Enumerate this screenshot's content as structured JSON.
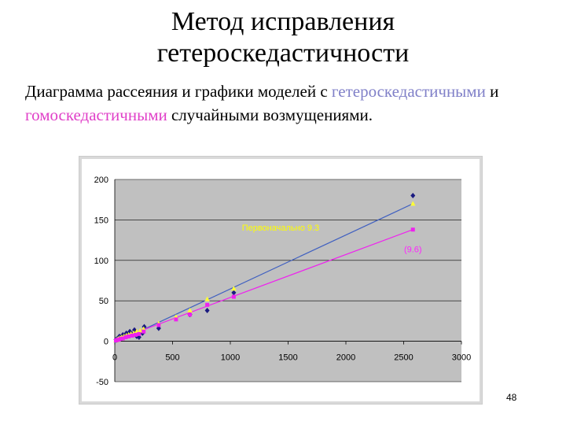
{
  "slide": {
    "title_line1": "Метод исправления",
    "title_line2": "гетероскедастичности",
    "subtitle_part1": "Диаграмма рассеяния и графики моделей с ",
    "subtitle_hetero": "гетероскедастичными",
    "subtitle_and": " и ",
    "subtitle_homo": "гомоскедастичными",
    "subtitle_part2": " случайными возмущениями.",
    "page_number": "48"
  },
  "chart_data": {
    "type": "scatter",
    "title": "",
    "xlabel": "",
    "ylabel": "",
    "xlim": [
      0,
      3000
    ],
    "ylim": [
      -50,
      200
    ],
    "x_ticks": [
      0,
      500,
      1000,
      1500,
      2000,
      2500,
      3000
    ],
    "y_ticks": [
      -50,
      0,
      50,
      100,
      150,
      200
    ],
    "grid": "horizontal",
    "background": "#c0c0c0",
    "series": [
      {
        "color": "#1a1a80",
        "marker": "diamond",
        "points": [
          [
            10,
            2
          ],
          [
            20,
            3
          ],
          [
            30,
            4
          ],
          [
            40,
            6
          ],
          [
            55,
            5
          ],
          [
            70,
            8
          ],
          [
            85,
            6
          ],
          [
            100,
            10
          ],
          [
            115,
            8
          ],
          [
            130,
            12
          ],
          [
            150,
            9
          ],
          [
            170,
            14
          ],
          [
            190,
            6
          ],
          [
            210,
            5
          ],
          [
            240,
            10
          ],
          [
            255,
            18
          ],
          [
            380,
            16
          ],
          [
            650,
            33
          ],
          [
            800,
            38
          ],
          [
            1030,
            60
          ],
          [
            2580,
            180
          ]
        ]
      },
      {
        "color": "#ffff33",
        "marker": "triangle",
        "points": [
          [
            10,
            1
          ],
          [
            20,
            2
          ],
          [
            30,
            3
          ],
          [
            45,
            4
          ],
          [
            60,
            5
          ],
          [
            80,
            6
          ],
          [
            100,
            7
          ],
          [
            120,
            8
          ],
          [
            140,
            9
          ],
          [
            165,
            10
          ],
          [
            190,
            12
          ],
          [
            220,
            13
          ],
          [
            250,
            15
          ],
          [
            380,
            22
          ],
          [
            530,
            30
          ],
          [
            650,
            38
          ],
          [
            800,
            52
          ],
          [
            1030,
            65
          ],
          [
            2580,
            170
          ]
        ]
      },
      {
        "color": "#ee22ee",
        "marker": "square",
        "points": [
          [
            10,
            1
          ],
          [
            20,
            1.5
          ],
          [
            35,
            2
          ],
          [
            50,
            3
          ],
          [
            70,
            3.5
          ],
          [
            95,
            5
          ],
          [
            120,
            6
          ],
          [
            150,
            7
          ],
          [
            180,
            8
          ],
          [
            210,
            9
          ],
          [
            250,
            12
          ],
          [
            380,
            20
          ],
          [
            530,
            27
          ],
          [
            650,
            33
          ],
          [
            800,
            45
          ],
          [
            1030,
            55
          ],
          [
            2580,
            138
          ]
        ]
      }
    ],
    "lines": [
      {
        "color": "#4060c0",
        "points": [
          [
            0,
            -2
          ],
          [
            2580,
            170
          ]
        ]
      },
      {
        "color": "#ee22ee",
        "points": [
          [
            0,
            1
          ],
          [
            2580,
            138
          ]
        ]
      }
    ],
    "annotations": [
      {
        "text": "Первоначально 9.3",
        "x": 1100,
        "y": 137,
        "color": "#ffff00"
      },
      {
        "text": "(9.6)",
        "x": 2580,
        "y": 110,
        "color": "#ff22ff"
      }
    ]
  }
}
